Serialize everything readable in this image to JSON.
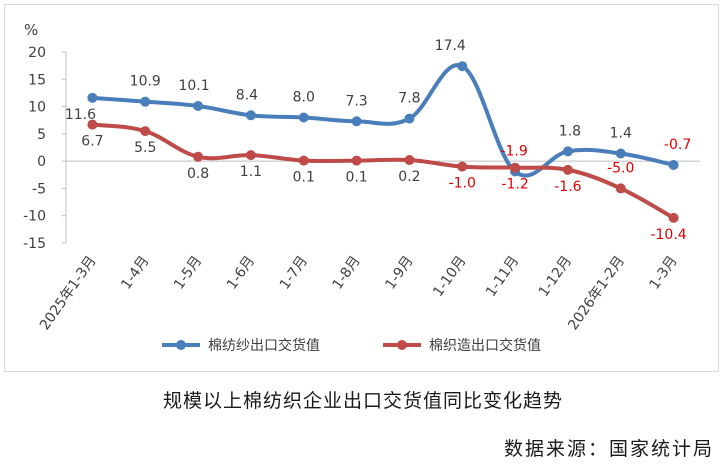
{
  "chart_data": {
    "type": "line",
    "ylabel": "%",
    "ylim": [
      -15,
      20
    ],
    "yticks": [
      20,
      15,
      10,
      5,
      0,
      -5,
      -10,
      -15
    ],
    "categories": [
      "2025年1-3月",
      "1-4月",
      "1-5月",
      "1-6月",
      "1-7月",
      "1-8月",
      "1-9月",
      "1-10月",
      "1-11月",
      "1-12月",
      "2026年1-2月",
      "1-3月"
    ],
    "series": [
      {
        "name": "棉纺纱出口交货值",
        "color": "#4a7ebb",
        "values": [
          11.6,
          10.9,
          10.1,
          8.4,
          8.0,
          7.3,
          7.8,
          17.4,
          -1.9,
          1.8,
          1.4,
          -0.7
        ],
        "labels": [
          "11.6",
          "10.9",
          "10.1",
          "8.4",
          "8.0",
          "7.3",
          "7.8",
          "17.4",
          "-1.9",
          "1.8",
          "1.4",
          "-0.7"
        ]
      },
      {
        "name": "棉织造出口交货值",
        "color": "#be4b48",
        "values": [
          6.7,
          5.5,
          0.8,
          1.1,
          0.1,
          0.1,
          0.2,
          -1.0,
          -1.2,
          -1.6,
          -5.0,
          -10.4
        ],
        "labels": [
          "6.7",
          "5.5",
          "0.8",
          "1.1",
          "0.1",
          "0.1",
          "0.2",
          "-1.0",
          "-1.2",
          "-1.6",
          "-5.0",
          "-10.4"
        ]
      }
    ],
    "legend": "bottom"
  },
  "caption": "规模以上棉纺织企业出口交货值同比变化趋势",
  "source": "数据来源：国家统计局"
}
